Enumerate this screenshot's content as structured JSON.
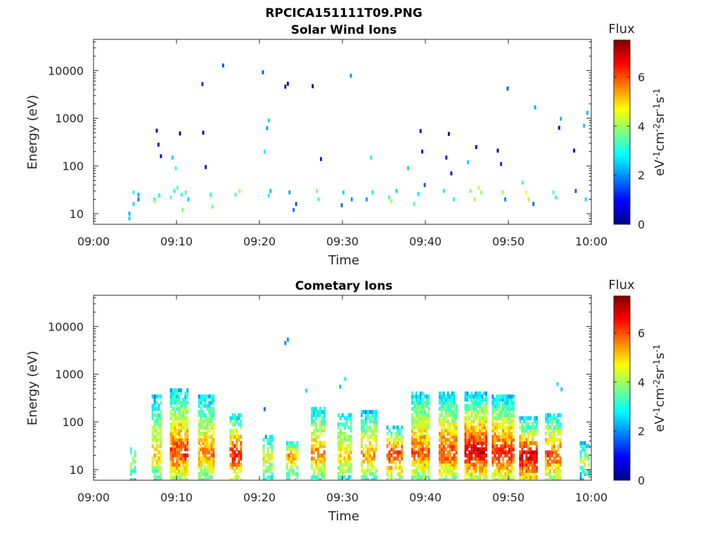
{
  "figure": {
    "filename_title": "RPCICA151111T09.PNG"
  },
  "colors": {
    "colormap": "jet",
    "axis": "#262626"
  },
  "chart_data": [
    {
      "type": "heatmap",
      "title": "Solar Wind Ions",
      "xlabel": "Time",
      "ylabel": "Energy (eV)",
      "x_ticks": [
        "09:00",
        "09:10",
        "09:20",
        "09:30",
        "09:40",
        "09:50",
        "10:00"
      ],
      "x_range_minutes": [
        0,
        60
      ],
      "y_scale": "log",
      "y_ticks": [
        "10",
        "100",
        "1000",
        "10000"
      ],
      "y_range": [
        6,
        45000
      ],
      "colorbar": {
        "title": "Flux",
        "label": "eV-1cm-2sr-1s-1",
        "ticks": [
          "0",
          "2",
          "4",
          "6"
        ],
        "range": [
          0,
          7.5
        ]
      },
      "cells": [
        [
          4.2,
          8,
          2.5
        ],
        [
          4.2,
          10,
          2.2
        ],
        [
          4.7,
          16,
          2.6
        ],
        [
          4.7,
          28,
          2.8
        ],
        [
          5.3,
          20,
          1.8
        ],
        [
          5.3,
          25,
          2.2
        ],
        [
          7.2,
          20,
          3.0
        ],
        [
          7.3,
          18,
          4.0
        ],
        [
          7.5,
          550,
          0.5
        ],
        [
          7.7,
          280,
          0.6
        ],
        [
          7.8,
          24,
          2.8
        ],
        [
          8.0,
          160,
          1.0
        ],
        [
          9.2,
          22,
          3.5
        ],
        [
          9.4,
          150,
          2.5
        ],
        [
          9.6,
          30,
          3.0
        ],
        [
          9.8,
          90,
          3.1
        ],
        [
          10.0,
          35,
          3.6
        ],
        [
          10.3,
          480,
          0.4
        ],
        [
          10.5,
          25,
          2.8
        ],
        [
          10.6,
          12,
          3.9
        ],
        [
          11.0,
          28,
          3.5
        ],
        [
          11.3,
          20,
          2.5
        ],
        [
          13.0,
          5200,
          1.3
        ],
        [
          13.1,
          500,
          0.6
        ],
        [
          13.4,
          95,
          0.9
        ],
        [
          14.0,
          25,
          2.8
        ],
        [
          14.2,
          14,
          3.7
        ],
        [
          15.5,
          12800,
          1.5
        ],
        [
          17.0,
          25,
          3.3
        ],
        [
          17.5,
          30,
          4.0
        ],
        [
          20.3,
          9200,
          1.6
        ],
        [
          20.5,
          200,
          2.7
        ],
        [
          20.8,
          620,
          2.1
        ],
        [
          21.0,
          900,
          2.5
        ],
        [
          21.0,
          24,
          3.0
        ],
        [
          21.2,
          30,
          2.3
        ],
        [
          23.0,
          4600,
          0.5
        ],
        [
          23.3,
          5300,
          0.6
        ],
        [
          23.5,
          28,
          2.1
        ],
        [
          24.0,
          12,
          1.8
        ],
        [
          24.3,
          16,
          1.5
        ],
        [
          26.3,
          4700,
          0.4
        ],
        [
          26.8,
          30,
          3.7
        ],
        [
          27.0,
          20,
          3.4
        ],
        [
          27.3,
          140,
          1.1
        ],
        [
          29.8,
          15,
          1.7
        ],
        [
          30.0,
          28,
          2.5
        ],
        [
          30.9,
          7800,
          2.0
        ],
        [
          31.0,
          20,
          2.0
        ],
        [
          32.8,
          20,
          2.0
        ],
        [
          33.3,
          150,
          3.0
        ],
        [
          33.5,
          28,
          2.7
        ],
        [
          35.5,
          22,
          3.2
        ],
        [
          35.8,
          18,
          4.0
        ],
        [
          36.4,
          30,
          2.5
        ],
        [
          37.8,
          90,
          2.5
        ],
        [
          38.5,
          16,
          3.4
        ],
        [
          39.0,
          26,
          2.8
        ],
        [
          39.3,
          540,
          0.5
        ],
        [
          39.5,
          200,
          0.8
        ],
        [
          39.8,
          40,
          1.5
        ],
        [
          42.1,
          30,
          2.7
        ],
        [
          42.4,
          150,
          1.1
        ],
        [
          42.7,
          470,
          0.6
        ],
        [
          43.0,
          70,
          1.0
        ],
        [
          43.3,
          20,
          3.0
        ],
        [
          45.0,
          120,
          2.5
        ],
        [
          45.3,
          30,
          3.8
        ],
        [
          45.8,
          20,
          4.0
        ],
        [
          46.0,
          250,
          0.8
        ],
        [
          46.3,
          35,
          4.3
        ],
        [
          46.6,
          28,
          3.9
        ],
        [
          48.6,
          210,
          0.5
        ],
        [
          49.0,
          110,
          1.2
        ],
        [
          49.2,
          28,
          3.9
        ],
        [
          49.5,
          20,
          1.9
        ],
        [
          49.8,
          4200,
          1.5
        ],
        [
          51.6,
          45,
          3.3
        ],
        [
          52.0,
          28,
          4.6
        ],
        [
          52.3,
          20,
          4.2
        ],
        [
          52.9,
          16,
          1.7
        ],
        [
          53.1,
          1700,
          2.2
        ],
        [
          55.3,
          28,
          3.4
        ],
        [
          55.6,
          22,
          2.9
        ],
        [
          56.0,
          630,
          0.9
        ],
        [
          56.2,
          980,
          2.3
        ],
        [
          57.8,
          210,
          0.9
        ],
        [
          58.0,
          30,
          1.6
        ],
        [
          59.0,
          700,
          2.4
        ],
        [
          59.2,
          20,
          2.6
        ],
        [
          59.4,
          1300,
          2.3
        ]
      ]
    },
    {
      "type": "heatmap",
      "title": "Cometary Ions",
      "xlabel": "Time",
      "ylabel": "Energy (eV)",
      "x_ticks": [
        "09:00",
        "09:10",
        "09:20",
        "09:30",
        "09:40",
        "09:50",
        "10:00"
      ],
      "x_range_minutes": [
        0,
        60
      ],
      "y_scale": "log",
      "y_ticks": [
        "10",
        "100",
        "1000",
        "10000"
      ],
      "y_range": [
        6,
        45000
      ],
      "colorbar": {
        "title": "Flux",
        "label": "eV-1cm-2sr-1s-1",
        "ticks": [
          "0",
          "2",
          "4",
          "6"
        ],
        "range": [
          0,
          7.5
        ]
      },
      "bursts": [
        [
          4.4,
          4.9,
          15,
          4.3,
          30,
          0.25
        ],
        [
          7.0,
          8.2,
          18,
          5.0,
          350,
          0.45
        ],
        [
          9.2,
          11.3,
          22,
          6.3,
          500,
          0.6
        ],
        [
          12.6,
          14.4,
          20,
          5.6,
          350,
          0.55
        ],
        [
          16.4,
          17.8,
          22,
          6.5,
          150,
          0.45
        ],
        [
          20.4,
          21.4,
          18,
          4.8,
          50,
          0.35
        ],
        [
          23.2,
          24.5,
          20,
          5.4,
          40,
          0.4
        ],
        [
          26.2,
          27.9,
          22,
          5.6,
          200,
          0.45
        ],
        [
          29.4,
          31.0,
          20,
          5.1,
          150,
          0.45
        ],
        [
          32.2,
          34.0,
          20,
          5.4,
          180,
          0.45
        ],
        [
          35.3,
          37.2,
          22,
          6.3,
          80,
          0.4
        ],
        [
          38.3,
          40.4,
          22,
          5.9,
          450,
          0.6
        ],
        [
          41.6,
          43.6,
          22,
          6.2,
          450,
          0.6
        ],
        [
          44.7,
          47.2,
          25,
          6.9,
          400,
          0.6
        ],
        [
          48.0,
          50.5,
          22,
          6.5,
          350,
          0.6
        ],
        [
          51.3,
          53.4,
          20,
          6.9,
          120,
          0.5
        ],
        [
          54.4,
          56.3,
          20,
          6.1,
          150,
          0.5
        ],
        [
          58.6,
          59.8,
          15,
          4.2,
          40,
          0.3
        ]
      ],
      "isolated_cells": [
        [
          20.5,
          185,
          1.7
        ],
        [
          23.0,
          4500,
          1.9
        ],
        [
          23.3,
          5300,
          2.0
        ],
        [
          25.5,
          450,
          2.6
        ],
        [
          29.6,
          550,
          2.4
        ],
        [
          30.2,
          800,
          2.9
        ],
        [
          55.8,
          620,
          2.6
        ],
        [
          56.3,
          480,
          2.4
        ]
      ]
    }
  ]
}
